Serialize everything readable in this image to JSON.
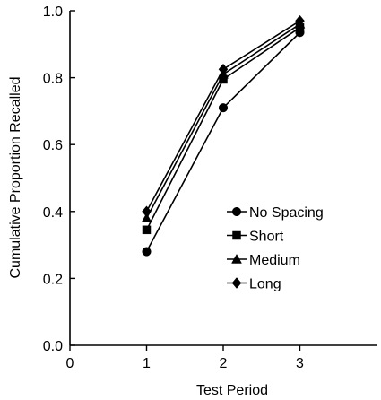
{
  "chart_data": {
    "type": "line",
    "xlabel": "Test Period",
    "ylabel": "Cumulative Proportion Recalled",
    "xlim": [
      0,
      4
    ],
    "ylim": [
      0,
      1.0
    ],
    "x_ticks": [
      0,
      1,
      2,
      3
    ],
    "y_ticks": [
      0.0,
      0.2,
      0.4,
      0.6,
      0.8,
      1.0
    ],
    "x_tick_labels": [
      "0",
      "1",
      "2",
      "3"
    ],
    "y_tick_labels": [
      "0.0",
      "0.2",
      "0.4",
      "0.6",
      "0.8",
      "1.0"
    ],
    "grid": false,
    "legend_position": "lower-right",
    "x": [
      1,
      2,
      3
    ],
    "series": [
      {
        "name": "No Spacing",
        "marker": "circle",
        "values": [
          0.28,
          0.71,
          0.935
        ]
      },
      {
        "name": "Short",
        "marker": "square",
        "values": [
          0.345,
          0.795,
          0.95
        ]
      },
      {
        "name": "Medium",
        "marker": "triangle",
        "values": [
          0.38,
          0.81,
          0.96
        ]
      },
      {
        "name": "Long",
        "marker": "diamond",
        "values": [
          0.4,
          0.825,
          0.97
        ]
      }
    ]
  }
}
